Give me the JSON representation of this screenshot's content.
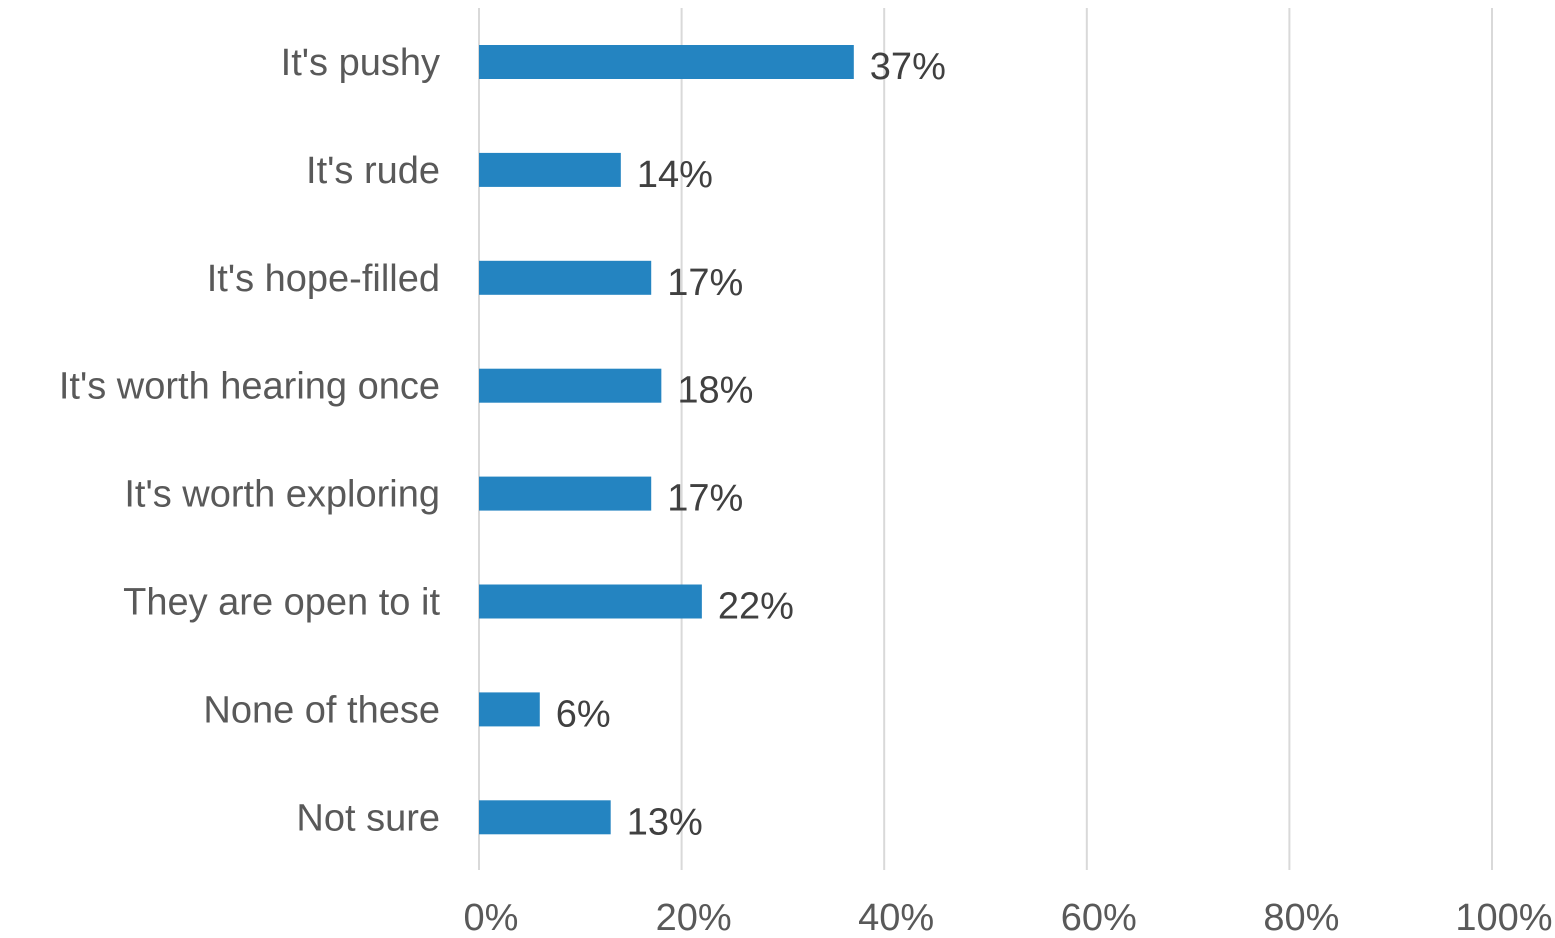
{
  "chart_data": {
    "type": "bar",
    "orientation": "horizontal",
    "categories": [
      "It's pushy",
      "It's rude",
      "It's hope-filled",
      "It's worth hearing once",
      "It's worth exploring",
      "They are open to it",
      "None of these",
      "Not sure"
    ],
    "values": [
      37,
      14,
      17,
      18,
      17,
      22,
      6,
      13
    ],
    "value_labels": [
      "37%",
      "14%",
      "17%",
      "18%",
      "17%",
      "22%",
      "6%",
      "13%"
    ],
    "xlim": [
      0,
      100
    ],
    "x_ticks": [
      0,
      20,
      40,
      60,
      80,
      100
    ],
    "x_tick_labels": [
      "0%",
      "20%",
      "40%",
      "60%",
      "80%",
      "100%"
    ],
    "grid": "vertical",
    "legend": "none",
    "bar_color": "#2484c1"
  }
}
